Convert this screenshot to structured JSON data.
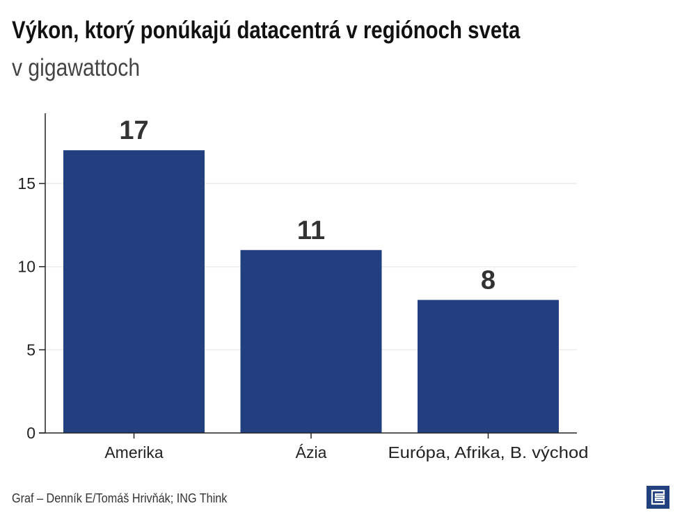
{
  "title": "Výkon, ktorý ponúkajú datacentrá v regiónoch sveta",
  "subtitle": "v gigawattoch",
  "footer": "Graf – Denník E/Tomáš Hrivňák; ING Think",
  "logo": {
    "text": "E",
    "icon": "dennik-e-logo"
  },
  "colors": {
    "bar": "#22407f",
    "grid": "#ececec",
    "axis": "#222222"
  },
  "chart_data": {
    "type": "bar",
    "title": "Výkon, ktorý ponúkajú datacentrá v regiónoch sveta",
    "subtitle": "v gigawattoch",
    "categories": [
      "Amerika",
      "Ázia",
      "Európa, Afrika, B. východ"
    ],
    "values": [
      17,
      11,
      8
    ],
    "data_labels": [
      "17",
      "11",
      "8"
    ],
    "xlabel": "",
    "ylabel": "",
    "ylim": [
      0,
      19.5
    ],
    "yticks": [
      0,
      5,
      10,
      15
    ],
    "grid": true,
    "legend": "none"
  }
}
